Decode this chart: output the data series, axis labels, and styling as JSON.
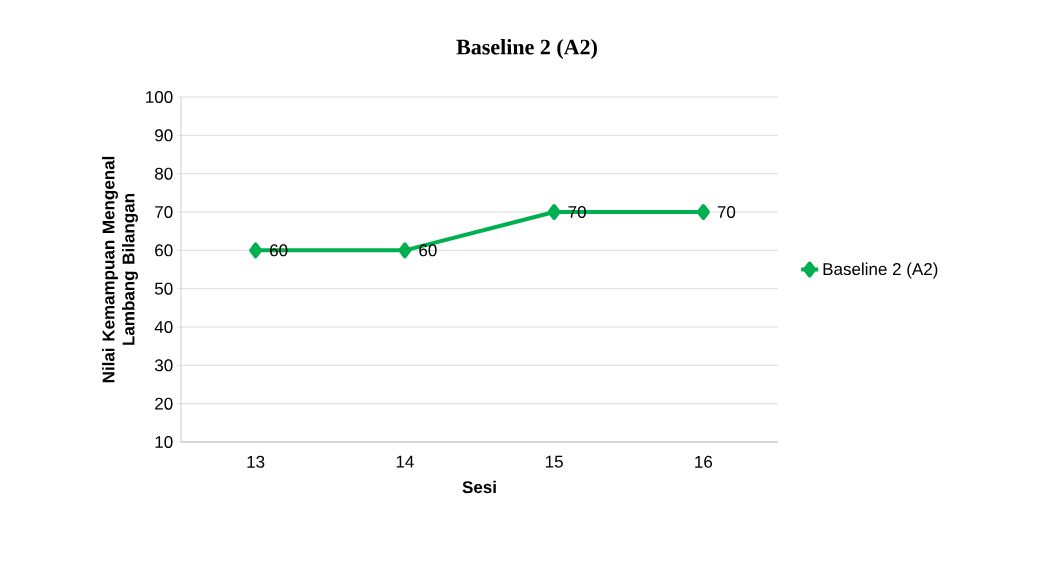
{
  "chart_data": {
    "type": "line",
    "title": "Baseline 2 (A2)",
    "xlabel": "Sesi",
    "ylabel": "Nilai Kemampuan Mengenal Lambang Bilangan",
    "categories": [
      "13",
      "14",
      "15",
      "16"
    ],
    "series": [
      {
        "name": "Baseline 2 (A2)",
        "color": "#00b050",
        "values": [
          60,
          60,
          70,
          70
        ]
      }
    ],
    "ylim": [
      10,
      100
    ],
    "yticks": [
      10,
      20,
      30,
      40,
      50,
      60,
      70,
      80,
      90,
      100
    ],
    "grid": "y",
    "legend": "right",
    "marker": "diamond",
    "line_style": "solid",
    "data_labels": true
  }
}
